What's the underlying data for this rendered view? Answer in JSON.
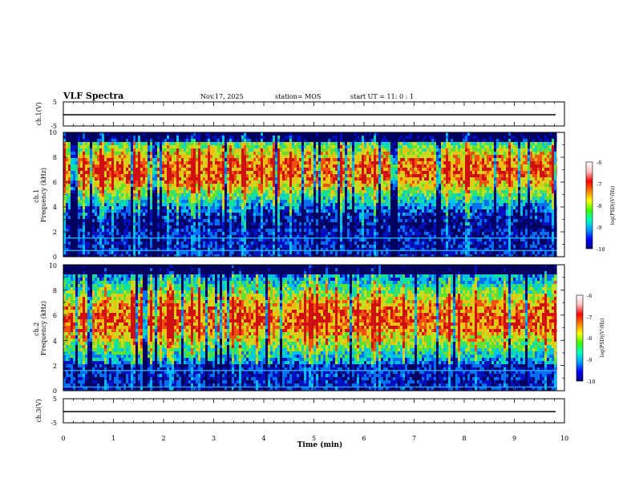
{
  "header": {
    "title": "VLF Spectra",
    "date": "Nov.17, 2025",
    "station": "station= MOS",
    "start_ut": "start  UT =   11: 0  : 1"
  },
  "colors": {
    "spec_ramp": [
      "#000060",
      "#0010c0",
      "#0070f0",
      "#00c0f0",
      "#10e0a0",
      "#60e030",
      "#c0e020",
      "#f0c010",
      "#f05010",
      "#d01010"
    ],
    "cbar_ramp": [
      "#000080",
      "#0000ff",
      "#00a0ff",
      "#00ffc0",
      "#40ff00",
      "#ffff00",
      "#ff8000",
      "#ff0000",
      "#ffc0c0",
      "#ffffff"
    ],
    "background": "#ffffff",
    "axis": "#000000"
  },
  "chart_data": [
    {
      "type": "line",
      "name": "ch1-waveform",
      "ylabel": "ch.1(V)",
      "ylim": [
        -5,
        5
      ],
      "yticks": [
        "5",
        "-5"
      ],
      "xlim": [
        0,
        10
      ],
      "level": -0.8
    },
    {
      "type": "heatmap",
      "name": "ch1-spectrogram",
      "ylabel": "ch.1\nFrequency (kHz)",
      "ylim": [
        0,
        10
      ],
      "yticks": [
        "0",
        "2",
        "4",
        "6",
        "8",
        "10"
      ],
      "xlim": [
        0,
        10
      ],
      "data_end_min": 9.85,
      "band_center_khz": 7.0,
      "band_half_width_khz": 2.8,
      "low_lines_khz": [
        0.5,
        1.5
      ],
      "colorbar": {
        "label": "log(PSD)(V²/Hz)",
        "range": [
          -10,
          -6
        ],
        "ticks": [
          "-6",
          "-7",
          "-8",
          "-9",
          "-10"
        ]
      }
    },
    {
      "type": "heatmap",
      "name": "ch2-spectrogram",
      "ylabel": "ch.2\nFrequency (kHz)",
      "ylim": [
        0,
        10
      ],
      "yticks": [
        "0",
        "2",
        "4",
        "6",
        "8",
        "10"
      ],
      "xlim": [
        0,
        10
      ],
      "data_end_min": 9.85,
      "band_center_khz": 5.8,
      "band_half_width_khz": 3.2,
      "low_lines_khz": [
        0.3,
        1.6
      ],
      "colorbar": {
        "label": "log(PSD)(V²/Hz)",
        "range": [
          -10,
          -6
        ],
        "ticks": [
          "-6",
          "-7",
          "-8",
          "-9",
          "-10"
        ]
      }
    },
    {
      "type": "line",
      "name": "ch3-waveform",
      "ylabel": "ch.3(V)",
      "ylim": [
        -5,
        5
      ],
      "yticks": [
        "5",
        "-5"
      ],
      "xlim": [
        0,
        10
      ],
      "xticks": [
        "0",
        "1",
        "2",
        "3",
        "4",
        "5",
        "6",
        "7",
        "8",
        "9",
        "10"
      ],
      "xlabel": "Time  (min)",
      "level": -0.8
    }
  ]
}
